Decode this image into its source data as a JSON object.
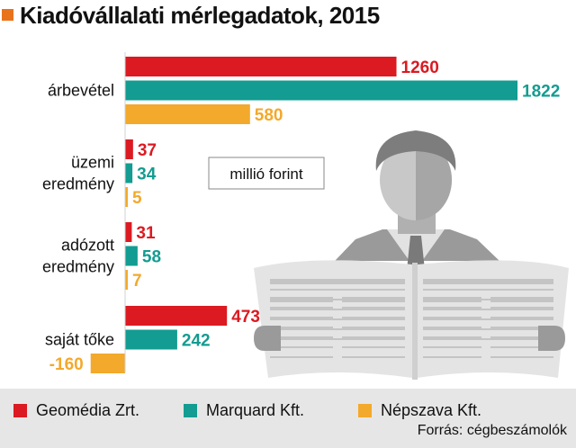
{
  "title": "Kiadóvállalati mérlegadatok, 2015",
  "unit_label": "millió forint",
  "source": "Forrás: cégbeszámolók",
  "colors": {
    "accent": "#E8731A",
    "series": [
      "#DB1A21",
      "#139C91",
      "#F3A92B"
    ],
    "illustration_dark": "#8e8e8e",
    "illustration_mid": "#bdbdbd",
    "illustration_light": "#d9d9d9"
  },
  "icons": [
    "newspaper-reader-illustration"
  ],
  "chart_data": {
    "type": "bar",
    "orientation": "horizontal",
    "categories": [
      "árbevétel",
      "üzemi eredmény",
      "adózott eredmény",
      "saját tőke"
    ],
    "category_lines": [
      [
        "árbevétel"
      ],
      [
        "üzemi",
        "eredmény"
      ],
      [
        "adózott",
        "eredmény"
      ],
      [
        "saját tőke"
      ]
    ],
    "series": [
      {
        "name": "Geomédia Zrt.",
        "values": [
          1260,
          37,
          31,
          473
        ]
      },
      {
        "name": "Marquard Kft.",
        "values": [
          1822,
          34,
          58,
          242
        ]
      },
      {
        "name": "Népszava Kft.",
        "values": [
          580,
          5,
          7,
          -160
        ]
      }
    ],
    "value_labels": [
      [
        "1260",
        "37",
        "31",
        "473"
      ],
      [
        "1822",
        "34",
        "58",
        "242"
      ],
      [
        "580",
        "5",
        "7",
        "-160"
      ]
    ],
    "xlim": [
      -160,
      1822
    ],
    "grid": false,
    "legend_position": "bottom"
  }
}
